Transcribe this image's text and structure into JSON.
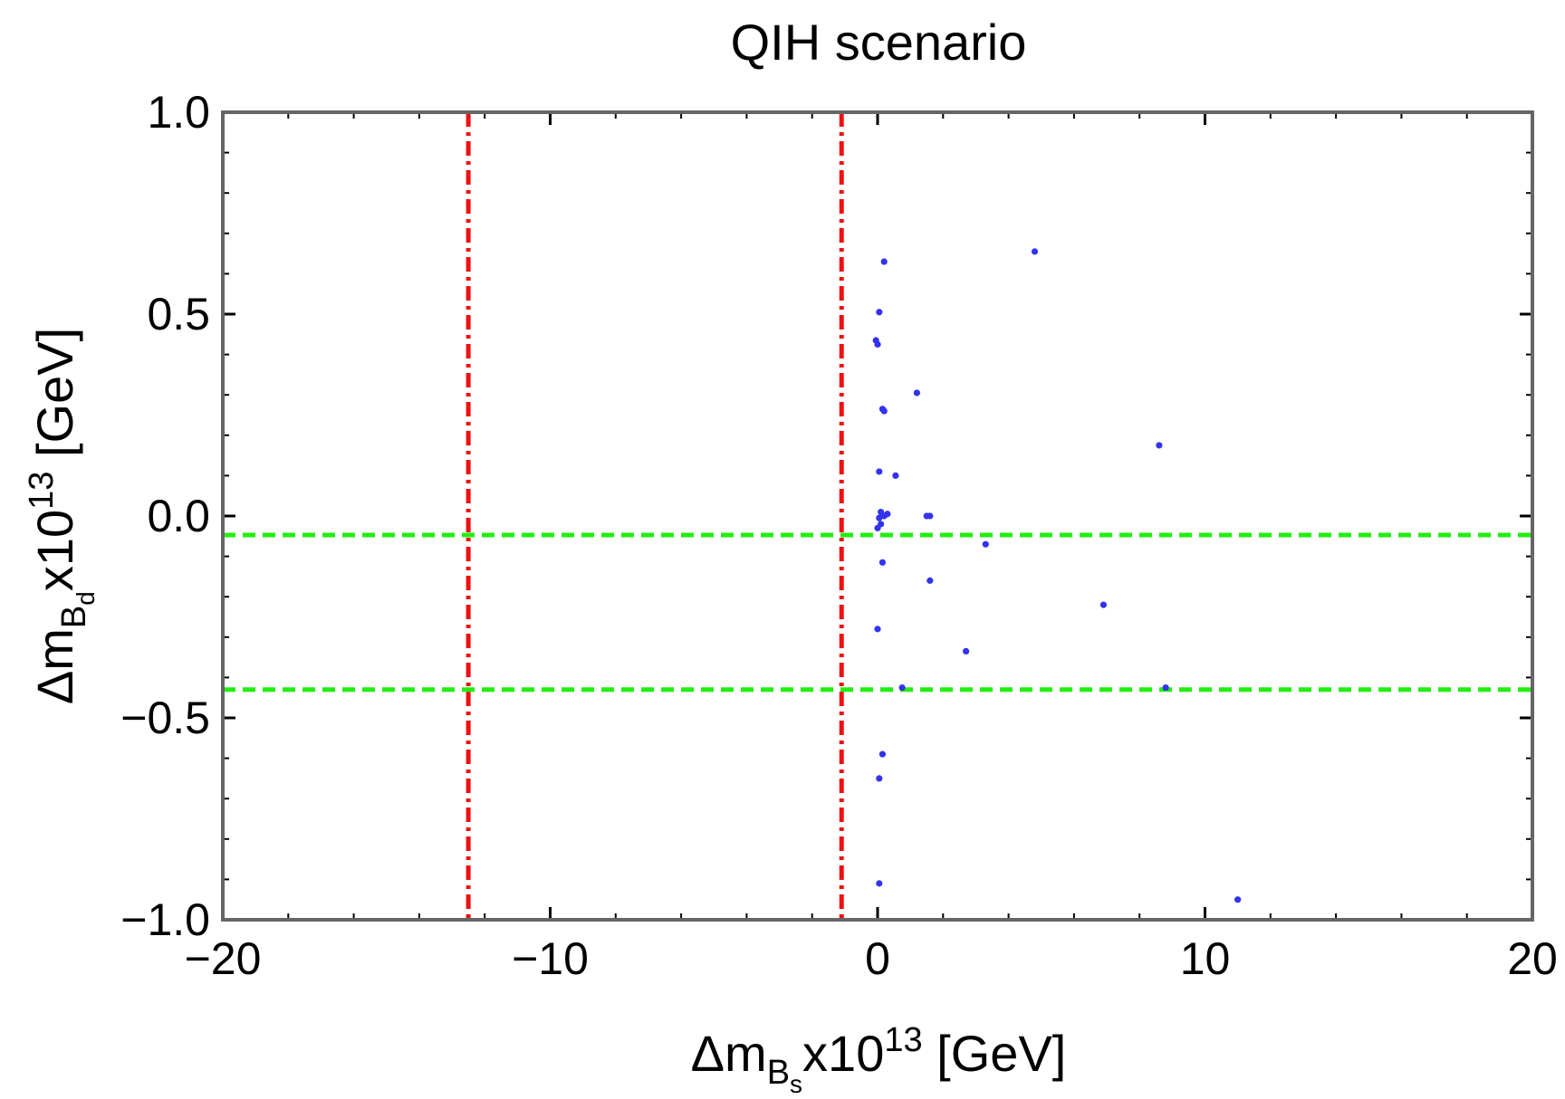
{
  "chart_data": {
    "type": "scatter",
    "title": "QIH scenario",
    "xlabel": {
      "prefix": "Δm",
      "sub": "B",
      "subsub": "s",
      "mid": "x10",
      "sup": "13",
      "suffix": " [GeV]"
    },
    "ylabel": {
      "prefix": "Δm",
      "sub": "B",
      "subsub": "d",
      "mid": "x10",
      "sup": "13",
      "suffix": " [GeV]"
    },
    "xlim": [
      -20,
      20
    ],
    "ylim": [
      -1.0,
      1.0
    ],
    "x_major_ticks": [
      -20,
      -10,
      0,
      10,
      20
    ],
    "x_tick_labels": [
      "−20",
      "−10",
      "0",
      "10",
      "20"
    ],
    "x_minor_step": 2,
    "y_major_ticks": [
      -1.0,
      -0.5,
      0.0,
      0.5,
      1.0
    ],
    "y_tick_labels": [
      "−1.0",
      "−0.5",
      "0.0",
      "0.5",
      "1.0"
    ],
    "y_minor_step": 0.1,
    "grid": false,
    "vertical_lines": [
      {
        "x": -12.5,
        "color": "#ee1111",
        "style": "dash-dot"
      },
      {
        "x": -1.1,
        "color": "#ee1111",
        "style": "dash-dot"
      }
    ],
    "horizontal_lines": [
      {
        "y": -0.047,
        "color": "#22ee11",
        "style": "dashed"
      },
      {
        "y": -0.43,
        "color": "#22ee11",
        "style": "dashed"
      }
    ],
    "series": [
      {
        "name": "points",
        "color": "#3333ee",
        "points": [
          [
            4.8,
            0.655
          ],
          [
            0.2,
            0.63
          ],
          [
            0.05,
            0.505
          ],
          [
            -0.05,
            0.435
          ],
          [
            0.0,
            0.425
          ],
          [
            1.2,
            0.305
          ],
          [
            0.15,
            0.265
          ],
          [
            0.2,
            0.26
          ],
          [
            8.6,
            0.175
          ],
          [
            0.05,
            0.11
          ],
          [
            0.55,
            0.1
          ],
          [
            0.1,
            0.01
          ],
          [
            0.3,
            0.005
          ],
          [
            0.2,
            0.0
          ],
          [
            1.5,
            0.0
          ],
          [
            1.6,
            0.0
          ],
          [
            0.05,
            -0.005
          ],
          [
            0.1,
            -0.02
          ],
          [
            0.0,
            -0.03
          ],
          [
            3.3,
            -0.07
          ],
          [
            0.15,
            -0.115
          ],
          [
            1.6,
            -0.16
          ],
          [
            6.9,
            -0.22
          ],
          [
            0.0,
            -0.28
          ],
          [
            2.7,
            -0.335
          ],
          [
            0.75,
            -0.425
          ],
          [
            8.8,
            -0.425
          ],
          [
            0.15,
            -0.59
          ],
          [
            0.05,
            -0.65
          ],
          [
            0.05,
            -0.91
          ],
          [
            11.0,
            -0.95
          ]
        ]
      }
    ]
  },
  "colors": {
    "frame": "#666666",
    "tick": "#000000",
    "red_line": "#ee1111",
    "green_line": "#22ee11",
    "point": "#3333ee"
  }
}
